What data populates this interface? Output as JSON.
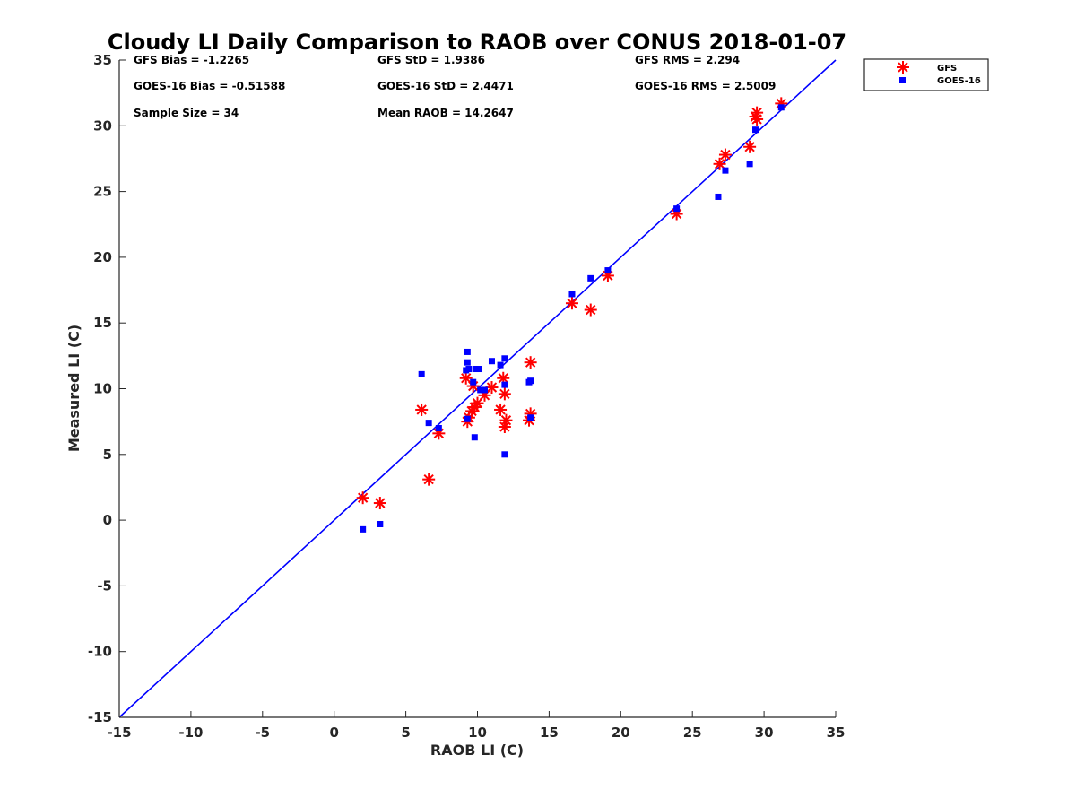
{
  "chart_data": {
    "type": "scatter",
    "title": "Cloudy LI Daily Comparison to RAOB over CONUS 2018-01-07",
    "xlabel": "RAOB LI (C)",
    "ylabel": "Measured LI (C)",
    "xlim": [
      -15,
      35
    ],
    "ylim": [
      -15,
      35
    ],
    "xticks": [
      "-15",
      "-10",
      "-5",
      "0",
      "5",
      "10",
      "15",
      "20",
      "25",
      "30",
      "35"
    ],
    "yticks": [
      "-15",
      "-10",
      "-5",
      "0",
      "5",
      "10",
      "15",
      "20",
      "25",
      "30",
      "35"
    ],
    "grid": false,
    "legend_position": "top-right-outside",
    "reference_line": {
      "x": [
        -15,
        35
      ],
      "y": [
        -15,
        35
      ],
      "color": "#0000ff"
    },
    "stats": [
      "GFS Bias = -1.2265",
      "GFS StD = 1.9386",
      "GFS RMS = 2.294",
      "GOES-16 Bias = -0.51588",
      "GOES-16 StD = 2.4471",
      "GOES-16 RMS = 2.5009",
      "Sample Size = 34",
      "Mean RAOB = 14.2647"
    ],
    "series": [
      {
        "name": "GFS",
        "marker": "asterisk",
        "color": "#ff0000",
        "x": [
          2.0,
          3.2,
          6.1,
          6.6,
          7.3,
          9.2,
          9.3,
          9.4,
          9.6,
          9.7,
          9.8,
          10.0,
          10.5,
          11.0,
          11.6,
          11.8,
          11.9,
          12.0,
          11.9,
          13.6,
          13.7,
          13.7,
          16.6,
          17.9,
          19.1,
          23.9,
          26.9,
          27.3,
          29.0,
          29.4,
          29.5,
          29.5,
          31.2
        ],
        "y": [
          1.7,
          1.3,
          8.4,
          3.1,
          6.6,
          10.8,
          7.5,
          7.8,
          8.3,
          10.2,
          8.6,
          8.9,
          9.5,
          10.1,
          8.4,
          10.8,
          9.6,
          7.6,
          7.1,
          7.6,
          8.1,
          12.0,
          16.5,
          16.0,
          18.6,
          23.3,
          27.1,
          27.8,
          28.4,
          30.7,
          31.0,
          30.5,
          31.7
        ]
      },
      {
        "name": "GOES-16",
        "marker": "square",
        "color": "#0000ff",
        "x": [
          2.0,
          3.2,
          6.1,
          6.6,
          7.3,
          9.2,
          9.3,
          9.3,
          9.3,
          9.4,
          9.7,
          9.8,
          9.9,
          10.1,
          10.2,
          10.5,
          11.0,
          11.6,
          11.9,
          11.9,
          11.9,
          13.6,
          13.7,
          13.7,
          16.6,
          17.9,
          19.1,
          23.9,
          26.8,
          27.3,
          29.0,
          29.4,
          31.2
        ],
        "y": [
          -0.7,
          -0.3,
          11.1,
          7.4,
          7.0,
          11.4,
          12.8,
          12.0,
          7.7,
          11.5,
          10.5,
          6.3,
          11.5,
          11.5,
          9.9,
          9.9,
          12.1,
          11.8,
          12.3,
          10.3,
          5.0,
          10.5,
          10.6,
          7.8,
          17.2,
          18.4,
          19.0,
          23.7,
          24.6,
          26.6,
          27.1,
          29.7,
          31.4
        ]
      }
    ]
  }
}
